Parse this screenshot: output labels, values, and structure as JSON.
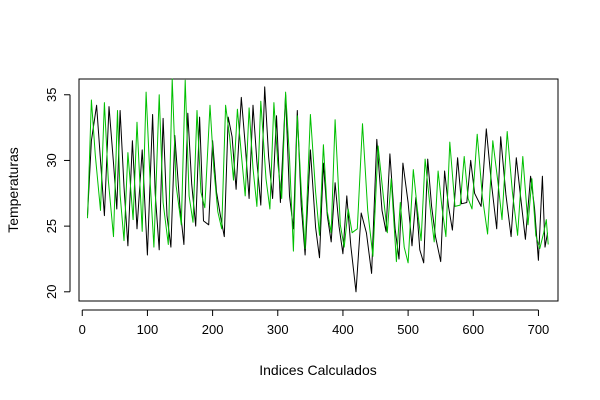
{
  "chart_data": {
    "type": "line",
    "title": "",
    "xlabel": "Indices Calculados",
    "ylabel": "Temperaturas",
    "xlim": [
      -5,
      730
    ],
    "ylim": [
      19.3,
      36.2
    ],
    "xticks": [
      0,
      100,
      200,
      300,
      400,
      500,
      600,
      700
    ],
    "yticks": [
      20,
      25,
      30,
      35
    ],
    "xtick_labels": [
      "0",
      "100",
      "200",
      "300",
      "400",
      "500",
      "600",
      "700"
    ],
    "ytick_labels": [
      "20",
      "25",
      "30",
      "35"
    ],
    "grid": false,
    "legend": "none",
    "colors": {
      "series_a": "#000000",
      "series_b": "#00c000",
      "axis": "#000000",
      "background": "#ffffff"
    },
    "series": [
      {
        "color": "#000000",
        "x": [
          8,
          14,
          22,
          28,
          34,
          41,
          48,
          53,
          58,
          64,
          70,
          77,
          84,
          92,
          100,
          108,
          112,
          118,
          124,
          130,
          136,
          142,
          150,
          156,
          162,
          168,
          174,
          180,
          186,
          194,
          200,
          206,
          212,
          218,
          224,
          230,
          236,
          244,
          250,
          256,
          262,
          268,
          274,
          280,
          286,
          292,
          298,
          304,
          312,
          318,
          324,
          330,
          336,
          342,
          350,
          358,
          364,
          370,
          376,
          382,
          388,
          394,
          400,
          406,
          412,
          420,
          428,
          436,
          444,
          452,
          460,
          466,
          472,
          480,
          486,
          492,
          500,
          506,
          512,
          518,
          524,
          530,
          536,
          542,
          550,
          556,
          562,
          568,
          576,
          582,
          590,
          596,
          602,
          612,
          620,
          628,
          636,
          642,
          650,
          658,
          666,
          672,
          680,
          688,
          694,
          700,
          706,
          710,
          714
        ],
        "y": [
          25.8,
          31.5,
          34.2,
          30,
          25.8,
          34.1,
          29.8,
          26.3,
          33.8,
          28,
          23.5,
          31.5,
          24.8,
          30.8,
          22.8,
          33.5,
          27.5,
          23.2,
          33.2,
          25.8,
          23.4,
          31.9,
          26.4,
          23.6,
          33.6,
          28.2,
          25,
          33.3,
          25.4,
          25.1,
          31.5,
          27.6,
          25.8,
          24.2,
          33.3,
          31.8,
          27.8,
          34.8,
          31.2,
          27.1,
          34.2,
          29.9,
          26.6,
          35.6,
          30.3,
          27.1,
          33.4,
          26.8,
          35,
          27.3,
          24.8,
          33.8,
          26.6,
          22.8,
          30.8,
          24.9,
          22.6,
          29.8,
          25.8,
          23.8,
          28.3,
          25,
          22.9,
          27.3,
          23.5,
          20,
          26,
          24.5,
          21.4,
          31.6,
          26.2,
          24.6,
          30.5,
          24.8,
          22.5,
          29.8,
          26.8,
          23.5,
          27.2,
          23.2,
          22.2,
          30.1,
          26.5,
          24.2,
          22.3,
          29.2,
          26.5,
          24.7,
          30.2,
          26.7,
          26.8,
          30,
          27.5,
          26.5,
          32.4,
          28.2,
          24.8,
          31.8,
          27.4,
          24.2,
          30.2,
          27.5,
          24,
          28.8,
          26.4,
          22.4,
          28.8,
          23.4,
          24.5
        ]
      },
      {
        "color": "#00c000",
        "x": [
          8,
          14,
          20,
          28,
          34,
          40,
          48,
          54,
          58,
          64,
          70,
          78,
          84,
          92,
          98,
          104,
          110,
          118,
          124,
          132,
          138,
          144,
          152,
          158,
          164,
          170,
          176,
          182,
          188,
          196,
          202,
          208,
          214,
          220,
          226,
          232,
          238,
          244,
          250,
          256,
          262,
          268,
          274,
          282,
          288,
          294,
          300,
          306,
          312,
          318,
          324,
          330,
          336,
          342,
          350,
          358,
          364,
          370,
          376,
          382,
          388,
          396,
          402,
          408,
          414,
          422,
          430,
          438,
          446,
          454,
          462,
          468,
          474,
          482,
          488,
          494,
          500,
          508,
          514,
          520,
          526,
          534,
          540,
          546,
          552,
          558,
          564,
          572,
          580,
          586,
          592,
          598,
          606,
          614,
          622,
          630,
          638,
          644,
          652,
          660,
          668,
          676,
          684,
          690,
          696,
          702,
          708,
          712,
          715
        ],
        "y": [
          25.6,
          34.6,
          30.4,
          26.2,
          34.4,
          28.5,
          24.2,
          33.8,
          27.4,
          23.9,
          30.6,
          25.5,
          32.9,
          24.6,
          35.2,
          28.6,
          23.4,
          35,
          26.8,
          23.6,
          36.2,
          28.1,
          25.1,
          36.1,
          27.3,
          25.3,
          33.8,
          27.6,
          26.4,
          34.2,
          29.3,
          26.1,
          24.8,
          34.2,
          31.9,
          28.5,
          33.9,
          30.5,
          27.3,
          34,
          29.4,
          26.5,
          34.5,
          28.6,
          26.3,
          34.4,
          29.8,
          27.1,
          35.2,
          30.2,
          23.1,
          33.4,
          27.8,
          23.3,
          33.5,
          27.6,
          24.3,
          31.2,
          26.1,
          24.5,
          33.1,
          25.1,
          23.4,
          26.3,
          24.5,
          24.8,
          32.8,
          26.2,
          22.7,
          31.1,
          27.3,
          24.5,
          28.6,
          22.3,
          26.8,
          23.4,
          22.2,
          29.3,
          26.4,
          23.9,
          30.1,
          26.3,
          23.8,
          29.2,
          26.4,
          24.2,
          31.4,
          26.5,
          26.6,
          30.3,
          27.1,
          26.3,
          32,
          27.2,
          24.4,
          31.5,
          28.3,
          25.5,
          32.2,
          27.6,
          24.3,
          30.3,
          25.1,
          28.6,
          24.3,
          23.3,
          24.5,
          25.5,
          23.6
        ]
      }
    ]
  }
}
